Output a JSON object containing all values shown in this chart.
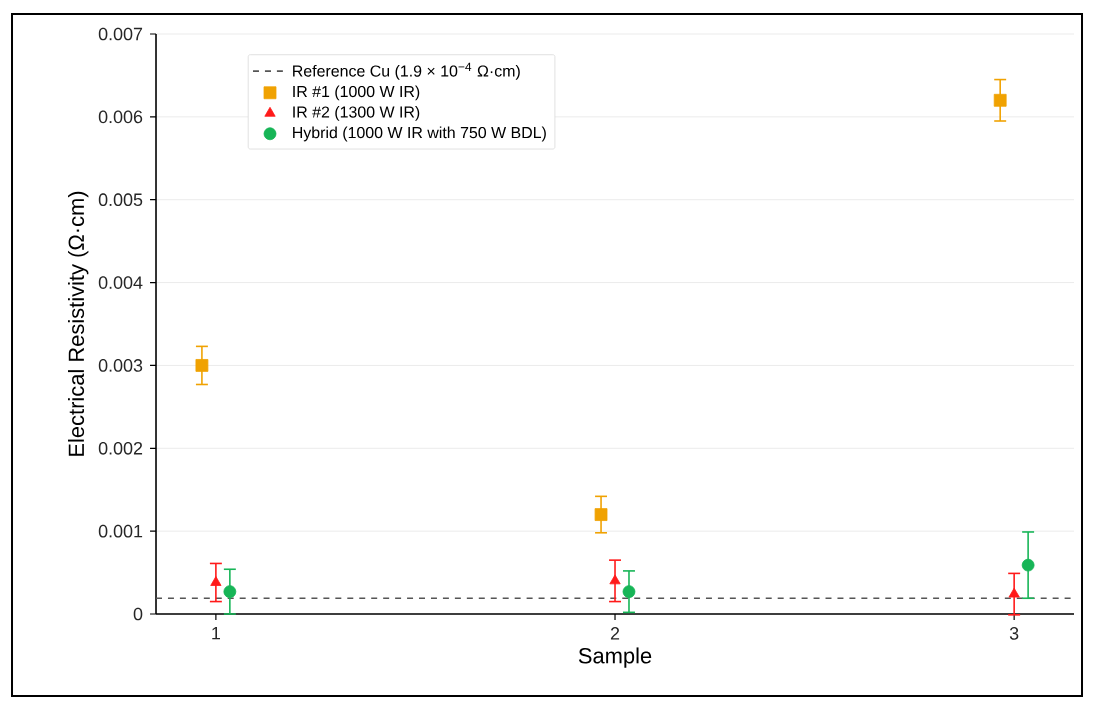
{
  "chart_data": {
    "type": "scatter",
    "xlabel": "Sample",
    "ylabel": "Electrical Resistivity (Ω·cm)",
    "xlim": [
      0.85,
      3.15
    ],
    "ylim": [
      0,
      0.007
    ],
    "xticks": [
      1,
      2,
      3
    ],
    "yticks": [
      0,
      0.001,
      0.002,
      0.003,
      0.004,
      0.005,
      0.006,
      0.007
    ],
    "grid": "y",
    "legend": "top left",
    "ref_lines": [
      {
        "axis": "y",
        "value": 0.00019,
        "label": "Reference Cu (1.9 × 10$^{−4}$ Ω·cm)",
        "color": "#555555",
        "line_style": "dashed"
      }
    ],
    "series": [
      {
        "name": "IR #1 (1000 W IR)",
        "color": "#f0a202",
        "marker": "square",
        "x": [
          0.965,
          1.965,
          2.965
        ],
        "values": [
          0.003,
          0.0012,
          0.0062
        ],
        "errors": [
          0.00023,
          0.00022,
          0.00025
        ]
      },
      {
        "name": "IR #2 (1300 W IR)",
        "color": "#ff1a1a",
        "marker": "triangle",
        "x": [
          1,
          2,
          3
        ],
        "values": [
          0.00038,
          0.0004,
          0.00024
        ],
        "errors": [
          0.00023,
          0.00025,
          0.00025
        ]
      },
      {
        "name": "Hybrid (1000 W IR with 750 W BDL)",
        "color": "#17b557",
        "marker": "circle",
        "x": [
          1.035,
          2.035,
          3.035
        ],
        "values": [
          0.00027,
          0.00027,
          0.00059
        ],
        "errors": [
          0.00027,
          0.00025,
          0.0004
        ]
      }
    ]
  }
}
